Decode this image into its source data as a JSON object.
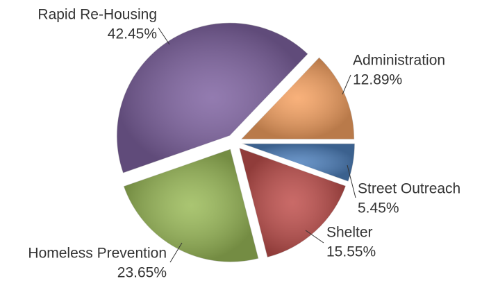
{
  "chart_data": {
    "type": "pie",
    "categories": [
      "Administration",
      "Street Outreach",
      "Shelter",
      "Homeless Prevention",
      "Rapid Re-Housing"
    ],
    "values": [
      12.89,
      5.45,
      15.55,
      23.65,
      42.45
    ],
    "value_labels": [
      "12.89%",
      "5.45%",
      "15.55%",
      "23.65%",
      "42.45%"
    ],
    "colors": [
      "#f7a363",
      "#4f81bd",
      "#c0504d",
      "#9bbb59",
      "#8064a2"
    ]
  }
}
